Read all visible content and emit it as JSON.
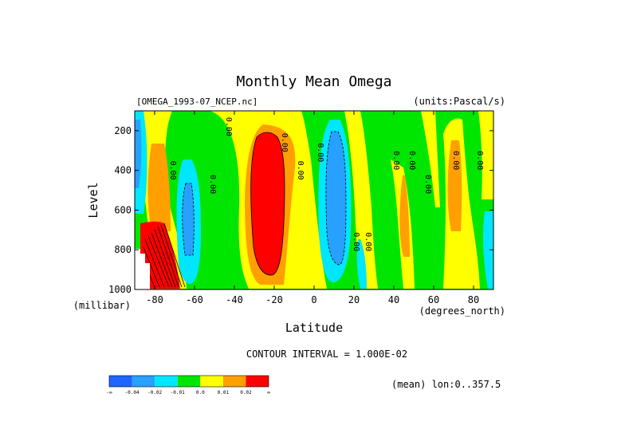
{
  "chart_data": {
    "type": "filled-contour",
    "title": "Monthly Mean Omega",
    "file_label": "[OMEGA_1993-07_NCEP.nc]",
    "units_label": "(units:Pascal/s)",
    "xlabel": "Latitude",
    "x_unit": "(degrees_north)",
    "ylabel": "Level",
    "y_unit": "(millibar)",
    "xlim": [
      -90,
      90
    ],
    "ylim": [
      1000,
      100
    ],
    "x_ticks": [
      -80,
      -60,
      -40,
      -20,
      0,
      20,
      40,
      60,
      80
    ],
    "x_tick_labels": [
      "-80",
      "-60",
      "-40",
      "-20",
      "0",
      "20",
      "40",
      "60",
      "80"
    ],
    "y_ticks": [
      200,
      400,
      600,
      800,
      1000
    ],
    "y_tick_labels": [
      "200",
      "400",
      "600",
      "800",
      "1000"
    ],
    "contour_interval_text": "CONTOUR INTERVAL = 1.000E-02",
    "mean_text": "(mean) lon:0..357.5",
    "contour_labels": [
      {
        "lat": -72,
        "lev": 400,
        "text": "0.00"
      },
      {
        "lat": -52,
        "lev": 470,
        "text": "0.00"
      },
      {
        "lat": -44,
        "lev": 180,
        "text": "0.00"
      },
      {
        "lat": -16,
        "lev": 260,
        "text": "0.00"
      },
      {
        "lat": -8,
        "lev": 400,
        "text": "0.00"
      },
      {
        "lat": 2,
        "lev": 310,
        "text": "0.00"
      },
      {
        "lat": 20,
        "lev": 760,
        "text": "0.00"
      },
      {
        "lat": 26,
        "lev": 760,
        "text": "0.00"
      },
      {
        "lat": 40,
        "lev": 350,
        "text": "0.00"
      },
      {
        "lat": 48,
        "lev": 350,
        "text": "0.00"
      },
      {
        "lat": 56,
        "lev": 470,
        "text": "0.00"
      },
      {
        "lat": 70,
        "lev": 350,
        "text": "0.00"
      },
      {
        "lat": 82,
        "lev": 350,
        "text": "0.00"
      }
    ],
    "colorbar": {
      "colors": [
        "#1e64ff",
        "#28a0ff",
        "#00e6ff",
        "#00e600",
        "#ffff00",
        "#ff9f00",
        "#ff0000"
      ],
      "labels": [
        "-∞",
        "-0.04",
        "-0.02",
        "-0.01",
        "0.0",
        "0.01",
        "0.02",
        "∞"
      ]
    }
  }
}
